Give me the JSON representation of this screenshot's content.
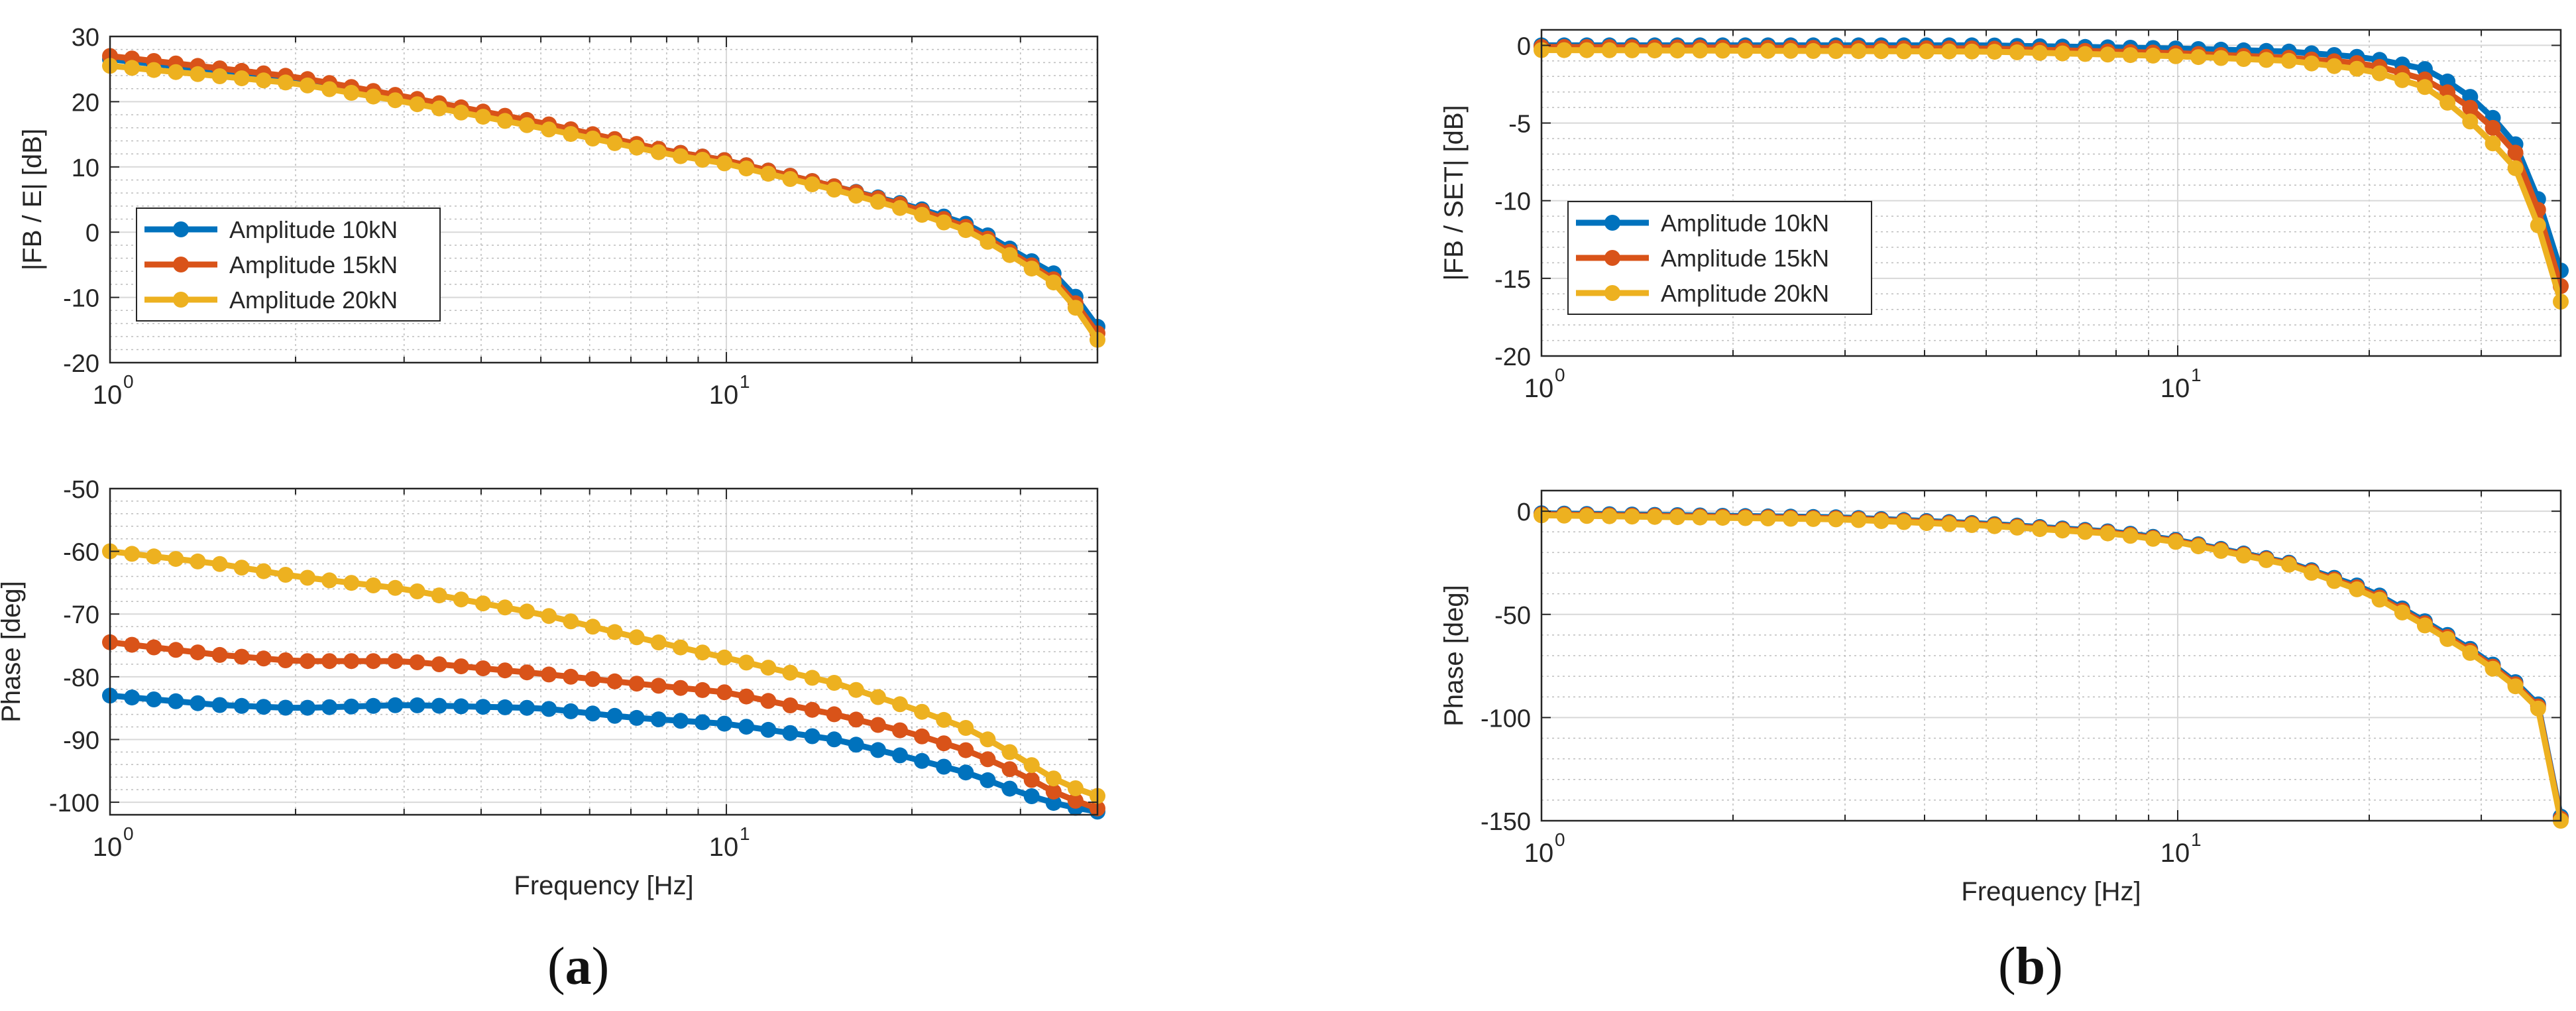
{
  "panels": [
    {
      "id": "a",
      "caption_letter": "a"
    },
    {
      "id": "b",
      "caption_letter": "b"
    }
  ],
  "chart_data": [
    {
      "type": "line",
      "panel": "a",
      "title": "",
      "xscale": "log",
      "xlim": [
        1,
        40
      ],
      "ylim": [
        -20,
        30
      ],
      "yticks": [
        -20,
        -10,
        0,
        10,
        20,
        30
      ],
      "ytick_labels": [
        "-20",
        "-10",
        "0",
        "10",
        "20",
        "30"
      ],
      "xtick_labels": [
        {
          "base": "10",
          "exp": "0"
        },
        {
          "base": "10",
          "exp": "1"
        }
      ],
      "xlabel": "",
      "ylabel": "|FB / E| [dB]",
      "grid": true,
      "legend": {
        "position": "bottom-left",
        "entries": [
          "Amplitude 10kN",
          "Amplitude 15kN",
          "Amplitude 20kN"
        ]
      },
      "series": [
        {
          "name": "Amplitude 10kN",
          "color": "#0072BD",
          "anchors": [
            [
              1,
              26.5
            ],
            [
              2,
              23.5
            ],
            [
              3,
              20.5
            ],
            [
              5,
              16.5
            ],
            [
              8,
              12.5
            ],
            [
              10,
              11
            ],
            [
              15,
              7
            ],
            [
              20,
              4
            ],
            [
              25,
              1
            ],
            [
              30,
              -3.5
            ],
            [
              35,
              -7
            ],
            [
              40,
              -14.5
            ]
          ]
        },
        {
          "name": "Amplitude 15kN",
          "color": "#D95319",
          "anchors": [
            [
              1,
              27
            ],
            [
              2,
              23.8
            ],
            [
              3,
              20.8
            ],
            [
              5,
              16.8
            ],
            [
              8,
              12.5
            ],
            [
              10,
              11
            ],
            [
              15,
              7
            ],
            [
              20,
              3.8
            ],
            [
              25,
              0.5
            ],
            [
              30,
              -4
            ],
            [
              35,
              -8
            ],
            [
              40,
              -15.5
            ]
          ]
        },
        {
          "name": "Amplitude 20kN",
          "color": "#EDB120",
          "anchors": [
            [
              1,
              25.5
            ],
            [
              2,
              22.8
            ],
            [
              3,
              20
            ],
            [
              5,
              16
            ],
            [
              8,
              12
            ],
            [
              10,
              10.5
            ],
            [
              15,
              6.5
            ],
            [
              20,
              3.2
            ],
            [
              25,
              0
            ],
            [
              30,
              -4.5
            ],
            [
              35,
              -8.5
            ],
            [
              40,
              -16.5
            ]
          ]
        }
      ]
    },
    {
      "type": "line",
      "panel": "a",
      "title": "",
      "xscale": "log",
      "xlim": [
        1,
        40
      ],
      "ylim": [
        -102,
        -50
      ],
      "yticks": [
        -100,
        -90,
        -80,
        -70,
        -60,
        -50
      ],
      "ytick_labels": [
        "-100",
        "-90",
        "-80",
        "-70",
        "-60",
        "-50"
      ],
      "xtick_labels": [
        {
          "base": "10",
          "exp": "0"
        },
        {
          "base": "10",
          "exp": "1"
        }
      ],
      "xlabel": "Frequency [Hz]",
      "ylabel": "Phase [deg]",
      "grid": true,
      "series": [
        {
          "name": "Amplitude 10kN",
          "color": "#0072BD",
          "anchors": [
            [
              1,
              -83
            ],
            [
              1.5,
              -84.5
            ],
            [
              2,
              -85
            ],
            [
              3,
              -84.5
            ],
            [
              5,
              -85
            ],
            [
              7,
              -86.5
            ],
            [
              10,
              -87.5
            ],
            [
              15,
              -90
            ],
            [
              20,
              -93
            ],
            [
              25,
              -95.5
            ],
            [
              30,
              -98.5
            ],
            [
              35,
              -100.5
            ],
            [
              40,
              -101.5
            ]
          ]
        },
        {
          "name": "Amplitude 15kN",
          "color": "#D95319",
          "anchors": [
            [
              1,
              -74.5
            ],
            [
              1.5,
              -76.5
            ],
            [
              2,
              -77.5
            ],
            [
              3,
              -77.5
            ],
            [
              5,
              -79.5
            ],
            [
              7,
              -81
            ],
            [
              10,
              -82.5
            ],
            [
              15,
              -86
            ],
            [
              20,
              -89
            ],
            [
              25,
              -92
            ],
            [
              30,
              -95.5
            ],
            [
              35,
              -99
            ],
            [
              40,
              -101
            ]
          ]
        },
        {
          "name": "Amplitude 20kN",
          "color": "#EDB120",
          "anchors": [
            [
              1,
              -60
            ],
            [
              1.5,
              -62
            ],
            [
              2,
              -64
            ],
            [
              3,
              -66
            ],
            [
              5,
              -70
            ],
            [
              7,
              -73.5
            ],
            [
              10,
              -77
            ],
            [
              15,
              -81
            ],
            [
              20,
              -85
            ],
            [
              25,
              -88.5
            ],
            [
              30,
              -93
            ],
            [
              35,
              -97
            ],
            [
              40,
              -99
            ]
          ]
        }
      ]
    },
    {
      "type": "line",
      "panel": "b",
      "title": "",
      "xscale": "log",
      "xlim": [
        1,
        40
      ],
      "ylim": [
        -20,
        1
      ],
      "yticks": [
        -20,
        -15,
        -10,
        -5,
        0
      ],
      "ytick_labels": [
        "-20",
        "-15",
        "-10",
        "-5",
        "0"
      ],
      "xtick_labels": [
        {
          "base": "10",
          "exp": "0"
        },
        {
          "base": "10",
          "exp": "1"
        }
      ],
      "xlabel": "",
      "ylabel": "|FB / SET| [dB]",
      "grid": true,
      "legend": {
        "position": "bottom-left",
        "entries": [
          "Amplitude 10kN",
          "Amplitude 15kN",
          "Amplitude 20kN"
        ]
      },
      "series": [
        {
          "name": "Amplitude 10kN",
          "color": "#0072BD",
          "anchors": [
            [
              1,
              0
            ],
            [
              5,
              0
            ],
            [
              10,
              -0.2
            ],
            [
              15,
              -0.4
            ],
            [
              20,
              -0.8
            ],
            [
              25,
              -1.6
            ],
            [
              30,
              -3.8
            ],
            [
              35,
              -7
            ],
            [
              40,
              -14.5
            ]
          ]
        },
        {
          "name": "Amplitude 15kN",
          "color": "#D95319",
          "anchors": [
            [
              1,
              -0.1
            ],
            [
              5,
              -0.2
            ],
            [
              10,
              -0.5
            ],
            [
              15,
              -0.8
            ],
            [
              20,
              -1.2
            ],
            [
              25,
              -2.3
            ],
            [
              30,
              -4.5
            ],
            [
              35,
              -7.5
            ],
            [
              40,
              -15.5
            ]
          ]
        },
        {
          "name": "Amplitude 20kN",
          "color": "#EDB120",
          "anchors": [
            [
              1,
              -0.3
            ],
            [
              5,
              -0.4
            ],
            [
              10,
              -0.7
            ],
            [
              15,
              -1
            ],
            [
              20,
              -1.6
            ],
            [
              25,
              -2.8
            ],
            [
              30,
              -5.5
            ],
            [
              35,
              -8.5
            ],
            [
              40,
              -16.5
            ]
          ]
        }
      ]
    },
    {
      "type": "line",
      "panel": "b",
      "title": "",
      "xscale": "log",
      "xlim": [
        1,
        40
      ],
      "ylim": [
        -150,
        10
      ],
      "yticks": [
        -150,
        -100,
        -50,
        0
      ],
      "ytick_labels": [
        "-150",
        "-100",
        "-50",
        "0"
      ],
      "xtick_labels": [
        {
          "base": "10",
          "exp": "0"
        },
        {
          "base": "10",
          "exp": "1"
        }
      ],
      "xlabel": "Frequency [Hz]",
      "ylabel": "Phase [deg]",
      "grid": true,
      "series": [
        {
          "name": "Amplitude 10kN",
          "color": "#0072BD",
          "anchors": [
            [
              1,
              -1
            ],
            [
              3,
              -3
            ],
            [
              5,
              -6
            ],
            [
              8,
              -10
            ],
            [
              10,
              -14
            ],
            [
              15,
              -25
            ],
            [
              20,
              -38
            ],
            [
              25,
              -55
            ],
            [
              30,
              -70
            ],
            [
              35,
              -86
            ],
            [
              39,
              -102
            ],
            [
              40,
              -148
            ]
          ]
        },
        {
          "name": "Amplitude 15kN",
          "color": "#D95319",
          "anchors": [
            [
              1,
              -1.5
            ],
            [
              3,
              -3.5
            ],
            [
              5,
              -6.5
            ],
            [
              8,
              -10.5
            ],
            [
              10,
              -14.5
            ],
            [
              15,
              -25.5
            ],
            [
              20,
              -39
            ],
            [
              25,
              -56
            ],
            [
              30,
              -71
            ],
            [
              35,
              -87
            ],
            [
              39,
              -103
            ],
            [
              40,
              -149
            ]
          ]
        },
        {
          "name": "Amplitude 20kN",
          "color": "#EDB120",
          "anchors": [
            [
              1,
              -2
            ],
            [
              3,
              -4
            ],
            [
              5,
              -7
            ],
            [
              8,
              -11
            ],
            [
              10,
              -15
            ],
            [
              15,
              -26
            ],
            [
              20,
              -40
            ],
            [
              25,
              -57
            ],
            [
              30,
              -72
            ],
            [
              35,
              -88
            ],
            [
              39,
              -104
            ],
            [
              40,
              -150
            ]
          ]
        }
      ]
    }
  ]
}
